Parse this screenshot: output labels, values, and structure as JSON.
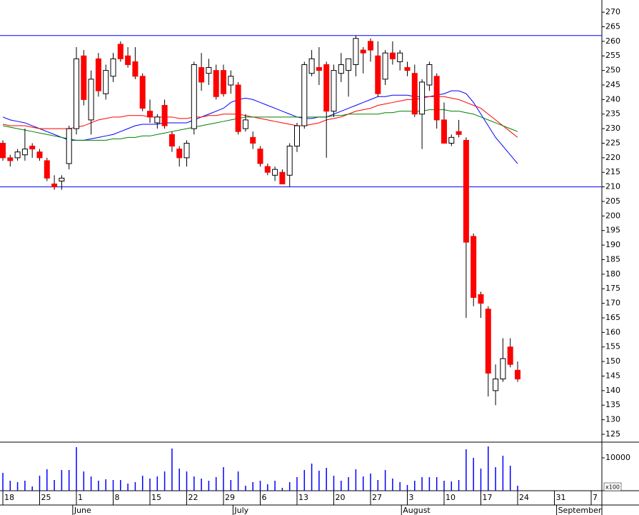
{
  "chart_data": {
    "type": "candlestick",
    "ohlc": [
      [
        225,
        226,
        219,
        220
      ],
      [
        220,
        221,
        217,
        219
      ],
      [
        220,
        223,
        219,
        222
      ],
      [
        221,
        230,
        219,
        223
      ],
      [
        224,
        225,
        220,
        223
      ],
      [
        222,
        223,
        219,
        220
      ],
      [
        219,
        220,
        212,
        213
      ],
      [
        211,
        214,
        209,
        210
      ],
      [
        212,
        214,
        209,
        213
      ],
      [
        218,
        231,
        216,
        230
      ],
      [
        230,
        258,
        228,
        254
      ],
      [
        255,
        257,
        238,
        240
      ],
      [
        233,
        250,
        228,
        247
      ],
      [
        254,
        256,
        241,
        243
      ],
      [
        242,
        252,
        240,
        250
      ],
      [
        248,
        256,
        246,
        254
      ],
      [
        259,
        260,
        253,
        254
      ],
      [
        255,
        258,
        251,
        252
      ],
      [
        253,
        258,
        247,
        248
      ],
      [
        248,
        249,
        236,
        237
      ],
      [
        236,
        240,
        232,
        234
      ],
      [
        232,
        235,
        230,
        234
      ],
      [
        238,
        240,
        230,
        231
      ],
      [
        228,
        229,
        222,
        224
      ],
      [
        223,
        224,
        217,
        220
      ],
      [
        220,
        226,
        217,
        225
      ],
      [
        230,
        253,
        228,
        252
      ],
      [
        251,
        256,
        243,
        246
      ],
      [
        249,
        254,
        245,
        251
      ],
      [
        250,
        252,
        240,
        241
      ],
      [
        250,
        252,
        241,
        242
      ],
      [
        245,
        250,
        242,
        248
      ],
      [
        245,
        246,
        228,
        229
      ],
      [
        230,
        235,
        229,
        233
      ],
      [
        227,
        229,
        223,
        225
      ],
      [
        223,
        224,
        217,
        218
      ],
      [
        217,
        218,
        214,
        215
      ],
      [
        214,
        217,
        212,
        216
      ],
      [
        215,
        216,
        211,
        211
      ],
      [
        214,
        225,
        210,
        224
      ],
      [
        224,
        232,
        222,
        231
      ],
      [
        231,
        253,
        230,
        252
      ],
      [
        249,
        257,
        248,
        254
      ],
      [
        251,
        258,
        245,
        250
      ],
      [
        252,
        253,
        220,
        236
      ],
      [
        236,
        252,
        234,
        250
      ],
      [
        249,
        256,
        246,
        252
      ],
      [
        250,
        254,
        241,
        254
      ],
      [
        252,
        262,
        248,
        261
      ],
      [
        257,
        258,
        249,
        256
      ],
      [
        260,
        261,
        253,
        257
      ],
      [
        255,
        260,
        241,
        242
      ],
      [
        247,
        257,
        245,
        256
      ],
      [
        256,
        260,
        252,
        254
      ],
      [
        253,
        257,
        250,
        256
      ],
      [
        251,
        253,
        248,
        250
      ],
      [
        249,
        252,
        234,
        235
      ],
      [
        235,
        247,
        223,
        246
      ],
      [
        245,
        253,
        243,
        252
      ],
      [
        248,
        249,
        230,
        233
      ],
      [
        233,
        239,
        225,
        225
      ],
      [
        225,
        228,
        224,
        227
      ],
      [
        229,
        233,
        227,
        228
      ],
      [
        226,
        227,
        165,
        191
      ],
      [
        193,
        194,
        169,
        172
      ],
      [
        173,
        174,
        165,
        170
      ],
      [
        168,
        169,
        138,
        146
      ],
      [
        140,
        149,
        135,
        144
      ],
      [
        144,
        158,
        143,
        151
      ],
      [
        155,
        158,
        148,
        149
      ],
      [
        147,
        150,
        143,
        144
      ]
    ],
    "up_color": "#ffffff",
    "down_color": "#ff0000",
    "series": [
      {
        "color": "#0000ff",
        "values": [
          234,
          233,
          232.5,
          232,
          231,
          230,
          229,
          228,
          227,
          226,
          226,
          226,
          226.5,
          227,
          227.5,
          228,
          229,
          230,
          231,
          231.5,
          231.5,
          231.5,
          232,
          232,
          232,
          232,
          233,
          234,
          235,
          236,
          237,
          239,
          240,
          240.5,
          240,
          239,
          238,
          237,
          236,
          235,
          234,
          233.5,
          233.5,
          234,
          234,
          235,
          236,
          237,
          238,
          239,
          240,
          241,
          241,
          241.5,
          241.5,
          241.5,
          241,
          241,
          241,
          241.5,
          242,
          243,
          243,
          242,
          239,
          235,
          231,
          227,
          224,
          221,
          218
        ]
      },
      {
        "color": "#ff0000",
        "values": [
          231.5,
          231,
          231,
          231,
          230.5,
          230,
          230,
          230,
          230,
          230,
          230.5,
          231,
          232,
          233,
          233.5,
          234,
          234,
          234.5,
          234.5,
          234.5,
          234,
          234,
          234,
          234,
          233.5,
          233.5,
          234,
          234,
          234.5,
          234.5,
          235,
          235,
          235,
          234.5,
          234,
          233.5,
          233,
          232.5,
          232,
          231.5,
          231,
          231,
          231.5,
          232,
          233,
          233.5,
          234,
          235,
          236,
          236.5,
          237,
          238,
          238.5,
          239,
          239.5,
          240,
          240,
          240.5,
          241,
          241,
          241,
          240.5,
          240,
          239,
          238,
          237,
          235,
          233,
          231,
          229,
          227
        ]
      },
      {
        "color": "#008000",
        "values": [
          231,
          230.5,
          230,
          229.5,
          229,
          228.5,
          228,
          227.5,
          227,
          226.5,
          226,
          226,
          226,
          226,
          226,
          226.5,
          226.5,
          227,
          227,
          227.5,
          227.5,
          228,
          228.5,
          229,
          229.5,
          230,
          230.5,
          231,
          231.5,
          232,
          232.5,
          233,
          233.5,
          234,
          234,
          234,
          234,
          234,
          234,
          234,
          234,
          234,
          234,
          234,
          234,
          234.5,
          234.5,
          235,
          235,
          235,
          235,
          235,
          235.5,
          235.5,
          236,
          236,
          236,
          236,
          236.5,
          236.5,
          236.5,
          236,
          236,
          235.5,
          235,
          234,
          233,
          232,
          231,
          230,
          229
        ]
      }
    ],
    "hlines": [
      262,
      210
    ],
    "hline_color": "#0000ff",
    "ylim": [
      122.3,
      274.2
    ],
    "yticks": [
      125,
      130,
      135,
      140,
      145,
      150,
      155,
      160,
      165,
      170,
      175,
      180,
      185,
      190,
      195,
      200,
      205,
      210,
      215,
      220,
      225,
      230,
      235,
      240,
      245,
      250,
      255,
      260,
      265,
      270
    ],
    "volume": [
      5430,
      3040,
      2610,
      3040,
      1300,
      4570,
      6520,
      3260,
      6300,
      6300,
      13260,
      5870,
      4350,
      3040,
      3480,
      3260,
      3260,
      2170,
      2610,
      4570,
      3700,
      4350,
      5870,
      12830,
      6740,
      5870,
      4350,
      3700,
      3040,
      4130,
      7170,
      3260,
      5870,
      1520,
      2610,
      3040,
      1960,
      3040,
      870,
      2610,
      4130,
      6300,
      8260,
      6090,
      6960,
      4570,
      3040,
      4130,
      6520,
      4350,
      5220,
      3260,
      6300,
      3700,
      2610,
      1740,
      3040,
      4130,
      4130,
      4130,
      3040,
      2830,
      3260,
      12610,
      10000,
      6740,
      13480,
      7170,
      10650,
      7610,
      1520
    ],
    "volume_color": "#0000ff",
    "volume_lim": [
      0,
      14780
    ],
    "volume_ticks": [
      10000
    ],
    "volume_unit": "x100",
    "xticks": [
      {
        "value": 0,
        "label": "18"
      },
      {
        "value": 5,
        "label": "25"
      },
      {
        "value": 10,
        "label": "1"
      },
      {
        "value": 15,
        "label": "8"
      },
      {
        "value": 20,
        "label": "15"
      },
      {
        "value": 25,
        "label": "22"
      },
      {
        "value": 30,
        "label": "29"
      },
      {
        "value": 35,
        "label": "6"
      },
      {
        "value": 40,
        "label": "13"
      },
      {
        "value": 45,
        "label": "20"
      },
      {
        "value": 50,
        "label": "27"
      },
      {
        "value": 55,
        "label": "3"
      },
      {
        "value": 60,
        "label": "10"
      },
      {
        "value": 65,
        "label": "17"
      },
      {
        "value": 70,
        "label": "24"
      },
      {
        "value": 75,
        "label": "31"
      },
      {
        "value": 80,
        "label": "7"
      }
    ],
    "months": [
      {
        "value": 9.5,
        "label": "June"
      },
      {
        "value": 31.3,
        "label": "July"
      },
      {
        "value": 54.2,
        "label": "August"
      },
      {
        "value": 75.3,
        "label": "September"
      }
    ]
  }
}
